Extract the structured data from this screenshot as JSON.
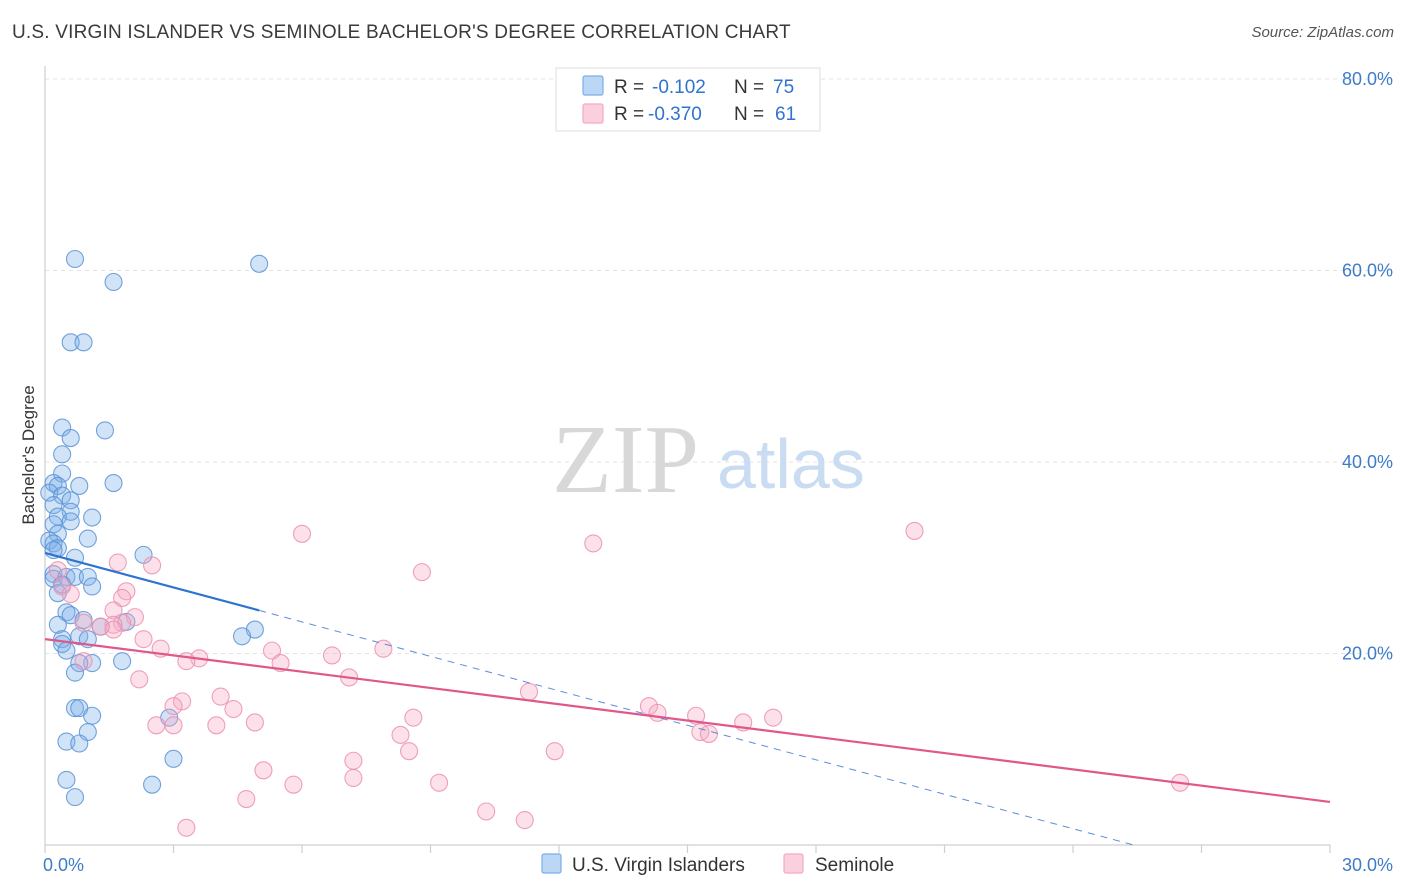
{
  "title": "U.S. VIRGIN ISLANDER VS SEMINOLE BACHELOR'S DEGREE CORRELATION CHART",
  "source": "Source: ZipAtlas.com",
  "watermark": {
    "zip": "ZIP",
    "atlas": "atlas"
  },
  "legend": {
    "rows": [
      {
        "r_label": "R = ",
        "r_value": "-0.102",
        "n_label": "N = ",
        "n_value": "75"
      },
      {
        "r_label": "R = ",
        "r_value": "-0.370",
        "n_label": "N = ",
        "n_value": "61"
      }
    ]
  },
  "chart_data": {
    "type": "scatter",
    "title": "U.S. VIRGIN ISLANDER VS SEMINOLE BACHELOR'S DEGREE CORRELATION CHART",
    "xlabel": "",
    "ylabel": "Bachelor's Degree",
    "xlim": [
      0,
      30
    ],
    "ylim": [
      0,
      80
    ],
    "x_tick_labels": [
      "0.0%",
      "30.0%"
    ],
    "y_ticks": [
      20,
      40,
      60,
      80
    ],
    "y_tick_labels": [
      "20.0%",
      "40.0%",
      "60.0%",
      "80.0%"
    ],
    "grid": true,
    "series": [
      {
        "name": "U.S. Virgin Islanders",
        "color": "#7aaee8",
        "stroke": "#5b93d6",
        "line_color": "#2f73d0",
        "R": -0.102,
        "N": 75,
        "trend": {
          "x0": 0.0,
          "y0": 30.5,
          "x1": 5.0,
          "y1": 24.5,
          "x_dash_end": 25.5
        },
        "points": [
          [
            0.7,
            61.2
          ],
          [
            5.0,
            60.7
          ],
          [
            1.6,
            58.8
          ],
          [
            0.6,
            52.5
          ],
          [
            0.9,
            52.5
          ],
          [
            0.4,
            43.6
          ],
          [
            1.4,
            43.3
          ],
          [
            0.6,
            42.5
          ],
          [
            0.4,
            40.8
          ],
          [
            0.4,
            38.8
          ],
          [
            1.6,
            37.8
          ],
          [
            0.2,
            37.8
          ],
          [
            0.3,
            37.5
          ],
          [
            0.8,
            37.5
          ],
          [
            0.1,
            36.8
          ],
          [
            0.4,
            36.5
          ],
          [
            0.6,
            36.0
          ],
          [
            0.2,
            35.5
          ],
          [
            0.6,
            34.8
          ],
          [
            0.3,
            34.3
          ],
          [
            1.1,
            34.2
          ],
          [
            0.6,
            33.8
          ],
          [
            0.2,
            33.5
          ],
          [
            0.3,
            32.5
          ],
          [
            1.0,
            32.0
          ],
          [
            0.1,
            31.8
          ],
          [
            0.2,
            31.5
          ],
          [
            0.3,
            31.0
          ],
          [
            0.2,
            30.8
          ],
          [
            2.3,
            30.3
          ],
          [
            0.7,
            30.0
          ],
          [
            0.2,
            28.3
          ],
          [
            0.2,
            27.8
          ],
          [
            0.5,
            28.0
          ],
          [
            0.7,
            28.0
          ],
          [
            1.0,
            28.0
          ],
          [
            0.4,
            27.2
          ],
          [
            1.1,
            27.0
          ],
          [
            0.3,
            26.3
          ],
          [
            0.5,
            24.3
          ],
          [
            0.6,
            24.0
          ],
          [
            0.9,
            23.5
          ],
          [
            0.3,
            23.0
          ],
          [
            1.9,
            23.3
          ],
          [
            1.3,
            22.8
          ],
          [
            4.9,
            22.5
          ],
          [
            4.6,
            21.8
          ],
          [
            0.8,
            21.8
          ],
          [
            1.0,
            21.5
          ],
          [
            0.4,
            21.5
          ],
          [
            0.4,
            21.0
          ],
          [
            0.5,
            20.3
          ],
          [
            1.1,
            19.0
          ],
          [
            1.8,
            19.2
          ],
          [
            0.8,
            19.0
          ],
          [
            0.7,
            18.0
          ],
          [
            0.7,
            14.3
          ],
          [
            0.8,
            14.3
          ],
          [
            1.1,
            13.5
          ],
          [
            2.9,
            13.3
          ],
          [
            1.0,
            11.8
          ],
          [
            0.5,
            10.8
          ],
          [
            0.8,
            10.6
          ],
          [
            3.0,
            9.0
          ],
          [
            0.5,
            6.8
          ],
          [
            2.5,
            6.3
          ],
          [
            0.7,
            5.0
          ]
        ]
      },
      {
        "name": "Seminole",
        "color": "#f5a9c3",
        "stroke": "#ec8fb0",
        "line_color": "#e0588b",
        "R": -0.37,
        "N": 61,
        "trend": {
          "x0": 0.0,
          "y0": 21.5,
          "x1": 30.0,
          "y1": 4.5
        },
        "points": [
          [
            20.3,
            32.8
          ],
          [
            6.0,
            32.5
          ],
          [
            12.8,
            31.5
          ],
          [
            1.7,
            29.5
          ],
          [
            2.5,
            29.2
          ],
          [
            8.8,
            28.5
          ],
          [
            0.3,
            28.7
          ],
          [
            0.4,
            27.0
          ],
          [
            1.9,
            26.5
          ],
          [
            0.6,
            26.2
          ],
          [
            1.8,
            25.8
          ],
          [
            1.6,
            24.5
          ],
          [
            2.1,
            23.8
          ],
          [
            0.9,
            23.2
          ],
          [
            1.8,
            23.2
          ],
          [
            1.6,
            23.0
          ],
          [
            1.3,
            22.8
          ],
          [
            1.6,
            22.5
          ],
          [
            2.3,
            21.5
          ],
          [
            2.7,
            20.5
          ],
          [
            5.3,
            20.3
          ],
          [
            7.9,
            20.5
          ],
          [
            6.7,
            19.8
          ],
          [
            3.6,
            19.5
          ],
          [
            3.3,
            19.2
          ],
          [
            5.5,
            19.0
          ],
          [
            0.9,
            19.2
          ],
          [
            7.1,
            17.5
          ],
          [
            2.2,
            17.3
          ],
          [
            11.3,
            16.0
          ],
          [
            4.1,
            15.5
          ],
          [
            3.2,
            15.0
          ],
          [
            3.0,
            14.5
          ],
          [
            14.1,
            14.5
          ],
          [
            14.3,
            13.8
          ],
          [
            4.4,
            14.2
          ],
          [
            15.2,
            13.5
          ],
          [
            17.0,
            13.3
          ],
          [
            8.6,
            13.3
          ],
          [
            2.6,
            12.5
          ],
          [
            3.0,
            12.5
          ],
          [
            4.0,
            12.5
          ],
          [
            4.9,
            12.8
          ],
          [
            16.3,
            12.8
          ],
          [
            15.3,
            11.8
          ],
          [
            15.5,
            11.6
          ],
          [
            8.3,
            11.5
          ],
          [
            11.9,
            9.8
          ],
          [
            8.5,
            9.8
          ],
          [
            7.2,
            8.8
          ],
          [
            5.1,
            7.8
          ],
          [
            7.2,
            7.0
          ],
          [
            9.2,
            6.5
          ],
          [
            5.8,
            6.3
          ],
          [
            26.5,
            6.5
          ],
          [
            4.7,
            4.8
          ],
          [
            10.3,
            3.5
          ],
          [
            11.2,
            2.6
          ],
          [
            3.3,
            1.8
          ]
        ]
      }
    ]
  }
}
